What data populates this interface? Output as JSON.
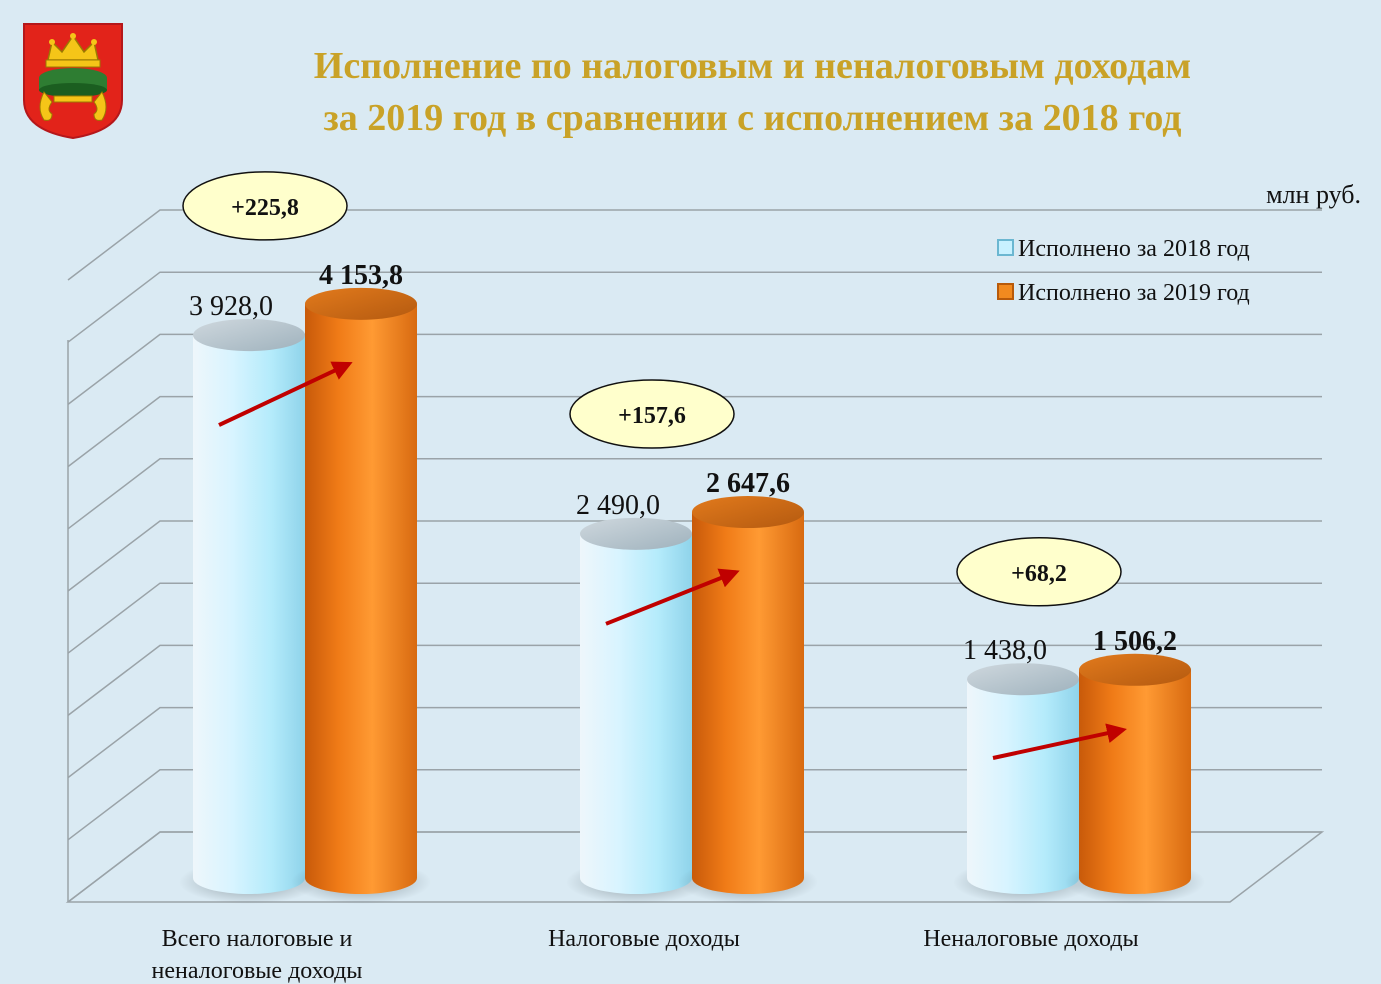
{
  "header": {
    "title_line1": "Исполнение по налоговым и неналоговым доходам",
    "title_line2": "за 2019 год в сравнении с исполнением за 2018 год",
    "units": "млн руб.",
    "emblem_icon": "tver-coat-of-arms-icon"
  },
  "colors": {
    "title": "#c9a227",
    "bar_2018": "#bfefff",
    "bar_2019": "#f28a1f",
    "arrow": "#c00000",
    "bubble": "#ffffcc",
    "background": "#daeaf3"
  },
  "chart_data": {
    "type": "bar",
    "style": "3d-cylinder",
    "title": "Исполнение по налоговым и неналоговым доходам за 2019 год в сравнении с исполнением за 2018 год",
    "ylabel": "млн руб.",
    "ylim": [
      0,
      4500
    ],
    "grid": true,
    "legend_position": "top-right",
    "categories": [
      [
        "Всего налоговые и",
        "неналоговые доходы"
      ],
      [
        "Налоговые доходы"
      ],
      [
        "Неналоговые доходы"
      ]
    ],
    "series": [
      {
        "name": "Исполнено за 2018 год",
        "values": [
          3928.0,
          2490.0,
          1438.0
        ],
        "labels": [
          "3 928,0",
          "2 490,0",
          "1 438,0"
        ]
      },
      {
        "name": "Исполнено за 2019 год",
        "values": [
          4153.8,
          2647.6,
          1506.2
        ],
        "labels": [
          "4 153,8",
          "2 647,6",
          "1 506,2"
        ]
      }
    ],
    "differences": [
      "+225,8",
      "+157,6",
      "+68,2"
    ]
  }
}
